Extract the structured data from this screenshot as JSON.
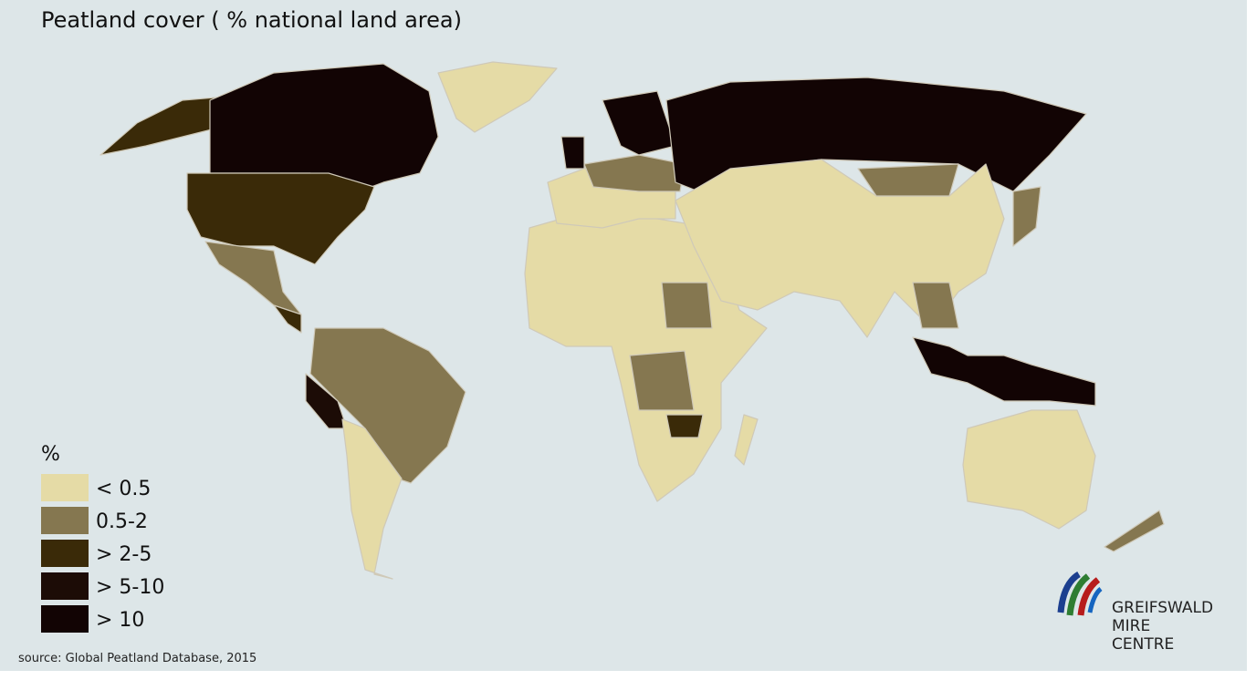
{
  "title": "Peatland cover ( % national land area)",
  "legend": {
    "title": "%",
    "items": [
      {
        "label": "< 0.5",
        "color": "#e5dba6"
      },
      {
        "label": "0.5-2",
        "color": "#857750"
      },
      {
        "label": "> 2-5",
        "color": "#3a2a08"
      },
      {
        "label": "> 5-10",
        "color": "#1c0c06"
      },
      {
        "label": "> 10",
        "color": "#120404"
      }
    ]
  },
  "source": "source: Global Peatland Database, 2015",
  "logo": {
    "lines": [
      "GREIFSWALD",
      "MIRE",
      "CENTRE"
    ]
  }
}
